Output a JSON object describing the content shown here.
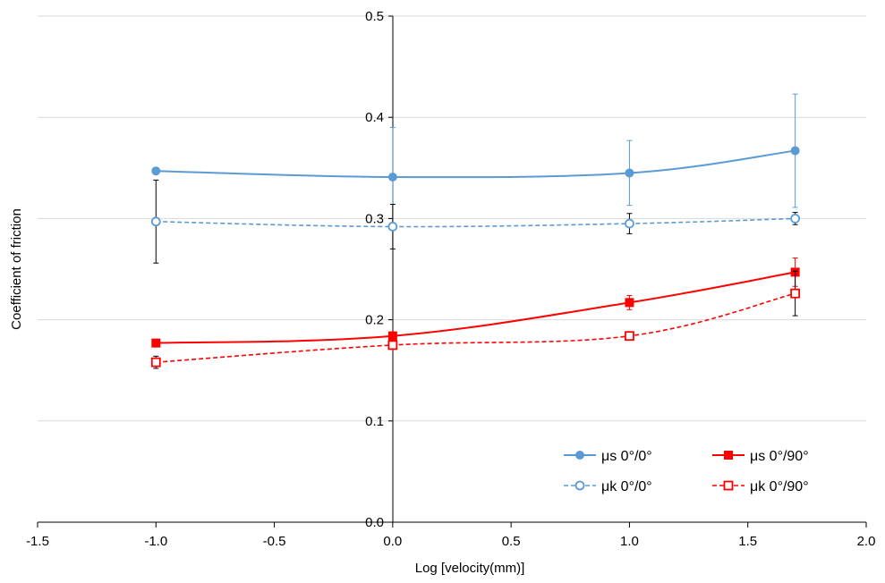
{
  "chart_data": {
    "type": "line",
    "title": "",
    "xlabel": "Log [velocity(mm)]",
    "ylabel": "Coefficient  of  friction",
    "xlim": [
      -1.5,
      2.0
    ],
    "ylim": [
      0.0,
      0.5
    ],
    "xticks": [
      -1.5,
      -1.0,
      -0.5,
      0.0,
      0.5,
      1.0,
      1.5,
      2.0
    ],
    "yticks": [
      0.0,
      0.1,
      0.2,
      0.3,
      0.4,
      0.5
    ],
    "xtick_labels": [
      "-1.5",
      "-1.0",
      "-0.5",
      "0.0",
      "0.5",
      "1.0",
      "1.5",
      "2.0"
    ],
    "ytick_labels": [
      "0.0",
      "0.1",
      "0.2",
      "0.3",
      "0.4",
      "0.5"
    ],
    "grid": "horizontal",
    "legend_position": "bottom-right",
    "series": [
      {
        "name": "μs  0°/0°",
        "color": "#5b9bd5",
        "line": "solid",
        "marker": "filled-circle",
        "x": [
          -1.0,
          0.0,
          1.0,
          1.7
        ],
        "y": [
          0.347,
          0.341,
          0.345,
          0.367
        ],
        "err": [
          0,
          0.049,
          0.032,
          0.056
        ]
      },
      {
        "name": "μk  0°/0°",
        "color": "#5b9bd5",
        "line": "dashed",
        "marker": "open-circle",
        "x": [
          -1.0,
          0.0,
          1.0,
          1.7
        ],
        "y": [
          0.297,
          0.292,
          0.295,
          0.3
        ],
        "err": [
          0.041,
          0.022,
          0.01,
          0.006
        ]
      },
      {
        "name": "μs  0°/90°",
        "color": "#ff0000",
        "line": "solid",
        "marker": "filled-square",
        "x": [
          -1.0,
          0.0,
          1.0,
          1.7
        ],
        "y": [
          0.177,
          0.184,
          0.217,
          0.247
        ],
        "err": [
          0,
          0.004,
          0.007,
          0.014
        ]
      },
      {
        "name": "μk  0°/90°",
        "color": "#ff0000",
        "line": "dashed",
        "marker": "open-square",
        "x": [
          -1.0,
          0.0,
          1.0,
          1.7
        ],
        "y": [
          0.158,
          0.175,
          0.184,
          0.226
        ],
        "err": [
          0.006,
          0.002,
          0.003,
          0.022
        ]
      }
    ]
  }
}
